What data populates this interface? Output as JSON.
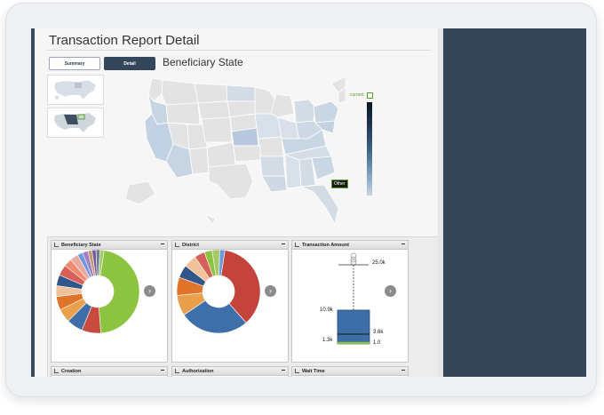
{
  "report": {
    "title": "Transaction Report Detail",
    "buttons": {
      "summary": "Summary",
      "detail": "Detail"
    },
    "map_heading": "Beneficiary State",
    "legend": {
      "current": "current",
      "other": "Other"
    }
  },
  "panels": [
    {
      "title": "Beneficiary State"
    },
    {
      "title": "District"
    },
    {
      "title": "Transaction Amount"
    },
    {
      "title": "Creation"
    },
    {
      "title": "Authorization"
    },
    {
      "title": "Wait Time"
    }
  ],
  "boxplot": {
    "max": "25.0k",
    "q3": "10.9k",
    "median": "3.6k",
    "q1": "1.3k",
    "min": "1.0"
  },
  "chart_data": [
    {
      "type": "pie",
      "title": "Beneficiary State",
      "values": [
        44,
        7,
        6,
        5,
        5,
        4,
        4,
        4,
        3,
        3,
        2,
        2,
        1.5,
        1.5,
        1.5,
        1.5
      ],
      "colors": [
        "#8cc341",
        "#c94a3f",
        "#3d6ea8",
        "#e8a04a",
        "#e0742a",
        "#f1c19a",
        "#31568a",
        "#d66058",
        "#f08a70",
        "#e8a9a0",
        "#6a9adb",
        "#a37dc7",
        "#bf9b6b",
        "#7a5a9f",
        "#6e7d8e",
        "#a5c96a"
      ]
    },
    {
      "type": "pie",
      "title": "District",
      "values": [
        36,
        27,
        8,
        7,
        5,
        5,
        4,
        3,
        3,
        2
      ],
      "colors": [
        "#c4433a",
        "#3f6fa9",
        "#e8a04a",
        "#e0742a",
        "#31568a",
        "#f1c19a",
        "#d66058",
        "#8cc341",
        "#a5c96a",
        "#6a9adb"
      ]
    }
  ]
}
